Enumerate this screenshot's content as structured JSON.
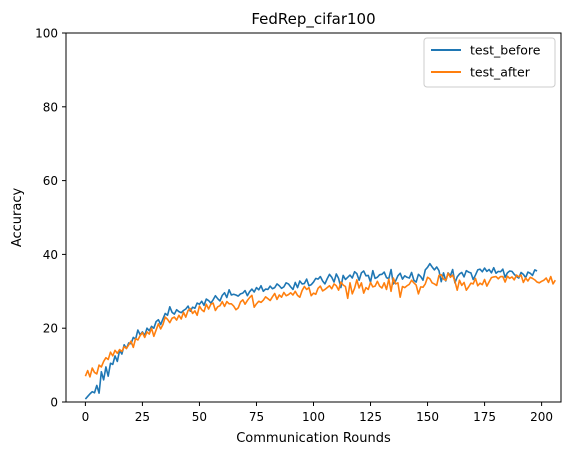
{
  "chart_data": {
    "type": "line",
    "title": "FedRep_cifar100",
    "xlabel": "Communication Rounds",
    "ylabel": "Accuracy",
    "xlim": [
      -8.5,
      208.5
    ],
    "ylim": [
      0,
      100
    ],
    "xticks": [
      0,
      25,
      50,
      75,
      100,
      125,
      150,
      175,
      200
    ],
    "yticks": [
      0,
      20,
      40,
      60,
      80,
      100
    ],
    "grid": false,
    "legend_position": "top-right",
    "series": [
      {
        "name": "test_before",
        "color": "#1f77b4",
        "x_start": 0,
        "x_step": 1,
        "values": [
          0.8,
          1.5,
          2.2,
          2.8,
          2.5,
          4.5,
          2.4,
          8.2,
          6.0,
          9.5,
          7.0,
          10.5,
          10.2,
          12.5,
          11.0,
          14.0,
          13.0,
          15.5,
          14.5,
          16.0,
          15.8,
          17.5,
          17.0,
          19.5,
          18.2,
          19.0,
          18.0,
          20.0,
          19.3,
          20.5,
          20.0,
          21.8,
          22.3,
          21.0,
          22.5,
          24.0,
          23.5,
          25.8,
          24.3,
          23.8,
          25.0,
          24.5,
          24.2,
          24.8,
          25.2,
          26.0,
          24.6,
          25.7,
          25.4,
          26.8,
          26.5,
          27.3,
          26.2,
          27.9,
          27.5,
          26.8,
          27.7,
          28.8,
          28.0,
          27.4,
          28.9,
          29.6,
          28.3,
          30.4,
          29.0,
          29.2,
          29.0,
          28.7,
          29.3,
          29.5,
          30.2,
          28.8,
          29.9,
          30.6,
          29.8,
          31.0,
          30.4,
          31.5,
          30.0,
          30.6,
          30.5,
          31.4,
          30.7,
          31.0,
          32.0,
          31.5,
          30.8,
          31.2,
          32.3,
          32.0,
          31.2,
          30.5,
          32.4,
          31.0,
          32.8,
          32.0,
          32.1,
          33.3,
          31.5,
          31.8,
          32.5,
          33.5,
          33.3,
          34.0,
          32.8,
          32.0,
          33.4,
          34.6,
          33.8,
          32.5,
          34.7,
          33.5,
          31.0,
          34.3,
          33.2,
          33.8,
          34.4,
          33.6,
          35.3,
          34.8,
          33.0,
          35.0,
          35.5,
          34.2,
          34.3,
          32.5,
          35.6,
          33.5,
          33.8,
          34.5,
          34.6,
          35.2,
          33.7,
          33.4,
          35.9,
          32.0,
          32.8,
          34.2,
          34.9,
          33.3,
          34.2,
          33.8,
          33.6,
          35.1,
          33.0,
          32.5,
          34.6,
          34.0,
          33.0,
          35.8,
          36.5,
          37.5,
          36.6,
          35.8,
          36.6,
          35.6,
          32.6,
          35.0,
          32.8,
          35.0,
          34.2,
          35.9,
          32.3,
          33.9,
          34.7,
          35.1,
          33.9,
          35.6,
          35.2,
          35.0,
          33.2,
          34.4,
          35.8,
          36.0,
          35.3,
          36.3,
          35.4,
          35.9,
          35.0,
          36.4,
          34.9,
          35.4,
          35.3,
          36.0,
          33.8,
          35.0,
          35.5,
          35.4,
          34.6,
          34.0,
          33.6,
          35.1,
          34.6,
          33.7,
          35.2,
          34.9,
          34.3,
          35.8,
          35.5
        ]
      },
      {
        "name": "test_after",
        "color": "#ff7f0e",
        "x_start": 0,
        "x_step": 1,
        "values": [
          7.0,
          8.5,
          6.8,
          9.2,
          8.0,
          7.6,
          10.0,
          9.5,
          11.0,
          12.0,
          11.5,
          13.5,
          12.5,
          14.0,
          13.2,
          14.2,
          13.7,
          15.0,
          14.5,
          15.5,
          16.5,
          14.8,
          17.2,
          16.8,
          18.0,
          18.8,
          17.5,
          19.0,
          18.4,
          20.0,
          17.8,
          19.5,
          21.2,
          19.8,
          21.0,
          23.0,
          22.4,
          21.5,
          22.7,
          23.0,
          22.2,
          23.5,
          22.5,
          24.3,
          23.0,
          24.8,
          25.3,
          24.0,
          24.7,
          23.5,
          26.0,
          25.0,
          24.5,
          26.5,
          25.2,
          26.5,
          26.8,
          24.8,
          25.8,
          26.1,
          27.2,
          25.9,
          27.2,
          26.6,
          26.6,
          26.0,
          25.0,
          25.5,
          27.1,
          27.7,
          26.5,
          27.5,
          28.3,
          28.9,
          25.7,
          26.6,
          27.3,
          27.0,
          27.6,
          28.5,
          28.0,
          27.5,
          28.5,
          29.4,
          27.8,
          29.0,
          28.4,
          29.7,
          28.8,
          29.1,
          29.6,
          29.0,
          30.0,
          28.9,
          28.4,
          30.2,
          31.3,
          30.5,
          31.0,
          28.8,
          29.5,
          29.2,
          30.8,
          31.4,
          30.1,
          30.5,
          31.0,
          31.5,
          30.7,
          32.0,
          31.5,
          30.3,
          32.5,
          31.7,
          31.3,
          28.1,
          32.3,
          29.3,
          30.8,
          33.1,
          30.9,
          32.3,
          29.5,
          31.0,
          30.5,
          32.4,
          31.2,
          31.4,
          32.7,
          31.4,
          30.9,
          32.3,
          30.5,
          33.3,
          30.0,
          33.6,
          32.0,
          32.3,
          28.4,
          31.3,
          31.0,
          31.5,
          31.9,
          33.0,
          32.3,
          31.7,
          29.3,
          31.2,
          31.1,
          32.0,
          33.8,
          33.4,
          32.3,
          32.0,
          31.6,
          34.3,
          34.5,
          33.3,
          33.0,
          34.9,
          33.8,
          34.4,
          32.7,
          30.3,
          33.0,
          31.6,
          32.4,
          30.3,
          31.2,
          32.2,
          32.0,
          33.5,
          31.5,
          32.2,
          31.8,
          33.2,
          31.4,
          32.6,
          33.7,
          33.9,
          34.0,
          33.4,
          34.0,
          34.0,
          32.5,
          34.1,
          33.5,
          33.9,
          33.1,
          34.4,
          33.9,
          34.4,
          32.4,
          33.6,
          32.8,
          33.8,
          33.5,
          33.1,
          32.5,
          32.3,
          32.7,
          33.0,
          33.6,
          32.4,
          34.0,
          32.0,
          33.0
        ]
      }
    ]
  }
}
